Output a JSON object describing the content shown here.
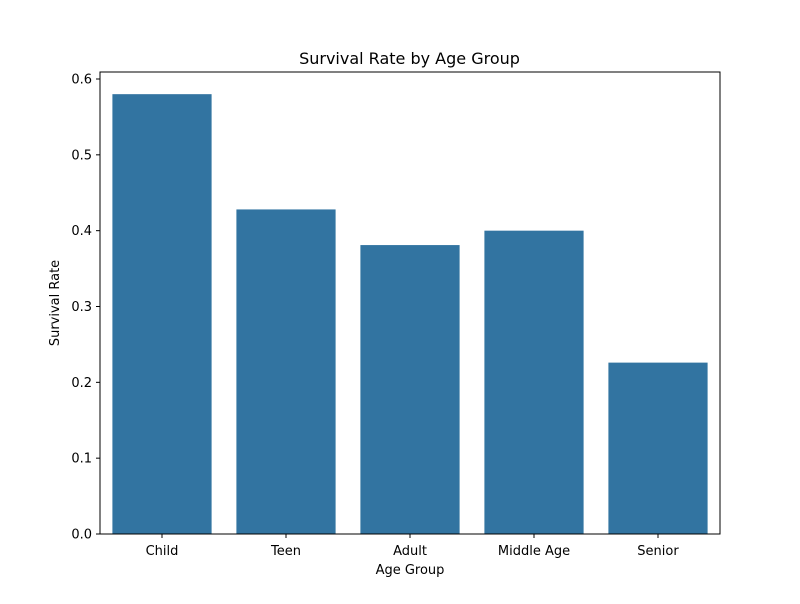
{
  "chart_data": {
    "type": "bar",
    "title": "Survival Rate by Age Group",
    "xlabel": "Age Group",
    "ylabel": "Survival Rate",
    "categories": [
      "Child",
      "Teen",
      "Adult",
      "Middle Age",
      "Senior"
    ],
    "values": [
      0.58,
      0.428,
      0.381,
      0.4,
      0.226
    ],
    "ylim": [
      0,
      0.6
    ],
    "yticks": [
      0.0,
      0.1,
      0.2,
      0.3,
      0.4,
      0.5,
      0.6
    ],
    "ytick_labels": [
      "0.0",
      "0.1",
      "0.2",
      "0.3",
      "0.4",
      "0.5",
      "0.6"
    ],
    "grid": false,
    "legend": "none",
    "bar_color": "#3274a1"
  }
}
